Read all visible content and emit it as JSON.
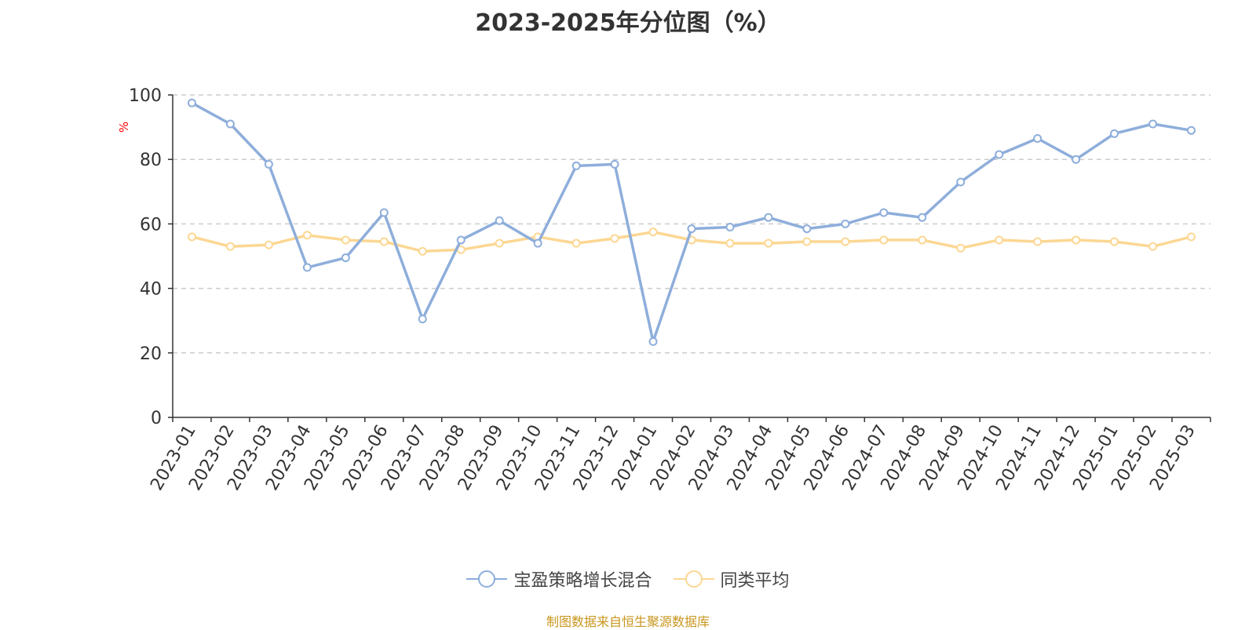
{
  "chart_data": {
    "type": "line",
    "title": "2023-2025年分位图（%）",
    "ylabel": "%",
    "ylim": [
      0,
      100
    ],
    "y_ticks": [
      0,
      20,
      40,
      60,
      80,
      100
    ],
    "grid": true,
    "legend_position": "bottom",
    "categories": [
      "2023-01",
      "2023-02",
      "2023-03",
      "2023-04",
      "2023-05",
      "2023-06",
      "2023-07",
      "2023-08",
      "2023-09",
      "2023-10",
      "2023-11",
      "2023-12",
      "2024-01",
      "2024-02",
      "2024-03",
      "2024-04",
      "2024-05",
      "2024-06",
      "2024-07",
      "2024-08",
      "2024-09",
      "2024-10",
      "2024-11",
      "2024-12",
      "2025-01",
      "2025-02",
      "2025-03"
    ],
    "series": [
      {
        "name": "宝盈策略增长混合",
        "color": "#8eaedb",
        "values": [
          97.5,
          91,
          78.5,
          46.5,
          49.5,
          63.5,
          30.5,
          55,
          61,
          54,
          78,
          78.5,
          23.5,
          58.5,
          59,
          62,
          58.5,
          60,
          63.5,
          62,
          73,
          81.5,
          86.5,
          80,
          88,
          91,
          89
        ]
      },
      {
        "name": "同类平均",
        "color": "#fcd793",
        "values": [
          56,
          53,
          53.5,
          56.5,
          55,
          54.5,
          51.5,
          52,
          54,
          56,
          54,
          55.5,
          57.5,
          55,
          54,
          54,
          54.5,
          54.5,
          55,
          55,
          52.5,
          55,
          54.5,
          55,
          54.5,
          53,
          56
        ]
      }
    ]
  },
  "source_text": "制图数据来自恒生聚源数据库"
}
